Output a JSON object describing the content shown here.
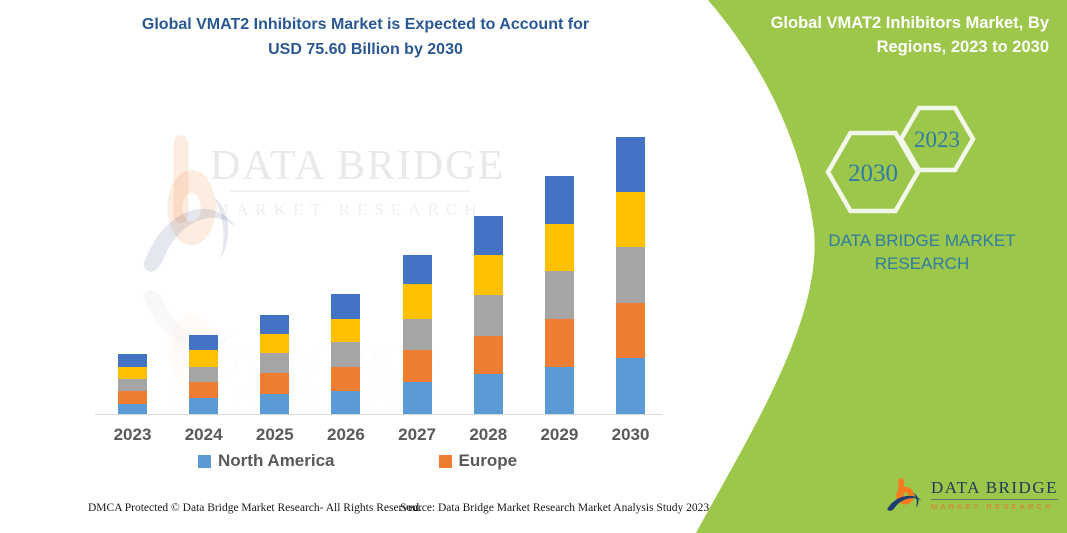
{
  "page": {
    "background": "#FFFFFF"
  },
  "header": {
    "title_line1": "Global VMAT2 Inhibitors Market is Expected to Account for",
    "title_line2": "USD 75.60 Billion by 2030",
    "title_color": "#2A5894"
  },
  "side_panel": {
    "background_color": "#9DC74A",
    "title_line1": "Global VMAT2 Inhibitors Market, By",
    "title_line2": "Regions, 2023 to 2030",
    "hexagon_large_label": "2030",
    "hexagon_small_label": "2023",
    "hexagon_text_color": "#2E7CA3",
    "brand_line1": "DATA BRIDGE MARKET",
    "brand_line2": "RESEARCH"
  },
  "brand_logo": {
    "name": "DATA BRIDGE",
    "tagline": "MARKET RESEARCH",
    "name_color": "#22395B",
    "tagline_color": "#E87722",
    "b_color": "#F47B20",
    "swoosh_color": "#1F3B73"
  },
  "watermark": {
    "line1": "DATA BRIDGE",
    "line2": "MARKET RESEARCH"
  },
  "legend": [
    {
      "label": "North America",
      "color": "#5B9BD5"
    },
    {
      "label": "Europe",
      "color": "#ED7D31"
    }
  ],
  "footer": {
    "left": "DMCA Protected © Data Bridge Market Research-  All Rights Reserved.",
    "right": "Source: Data Bridge Market Research  Market Analysis Study 2023"
  },
  "chart_data": {
    "type": "bar",
    "stacked": true,
    "title": "Global VMAT2 Inhibitors Market is Expected to Account for USD 75.60 Billion by 2030",
    "unit": "USD Billion",
    "categories": [
      "2023",
      "2024",
      "2025",
      "2026",
      "2027",
      "2028",
      "2029",
      "2030"
    ],
    "series": [
      {
        "name": "North America",
        "color": "#5B9BD5",
        "values": [
          3.1,
          4.5,
          5.7,
          6.6,
          8.9,
          11.1,
          13.1,
          15.5
        ]
      },
      {
        "name": "Europe",
        "color": "#ED7D31",
        "values": [
          3.3,
          4.5,
          5.8,
          6.5,
          8.9,
          10.5,
          12.9,
          15.0
        ]
      },
      {
        "name": "",
        "color": "#A5A5A5",
        "values": [
          3.4,
          4.1,
          5.3,
          6.8,
          8.2,
          11.1,
          13.2,
          15.1
        ]
      },
      {
        "name": "",
        "color": "#FFC000",
        "values": [
          3.3,
          4.5,
          5.2,
          6.1,
          9.6,
          10.9,
          12.7,
          15.0
        ]
      },
      {
        "name": "",
        "color": "#4472C4",
        "values": [
          3.4,
          4.2,
          5.3,
          6.9,
          7.9,
          10.6,
          13.1,
          15.0
        ]
      }
    ],
    "totals": [
      16.5,
      21.8,
      27.3,
      32.9,
      43.5,
      54.2,
      65.0,
      75.6
    ],
    "ylim": [
      0,
      80
    ],
    "y_axis_visible": false,
    "gridlines": false,
    "legend_position": "bottom",
    "legend_visible_entries": [
      "North America",
      "Europe"
    ]
  }
}
